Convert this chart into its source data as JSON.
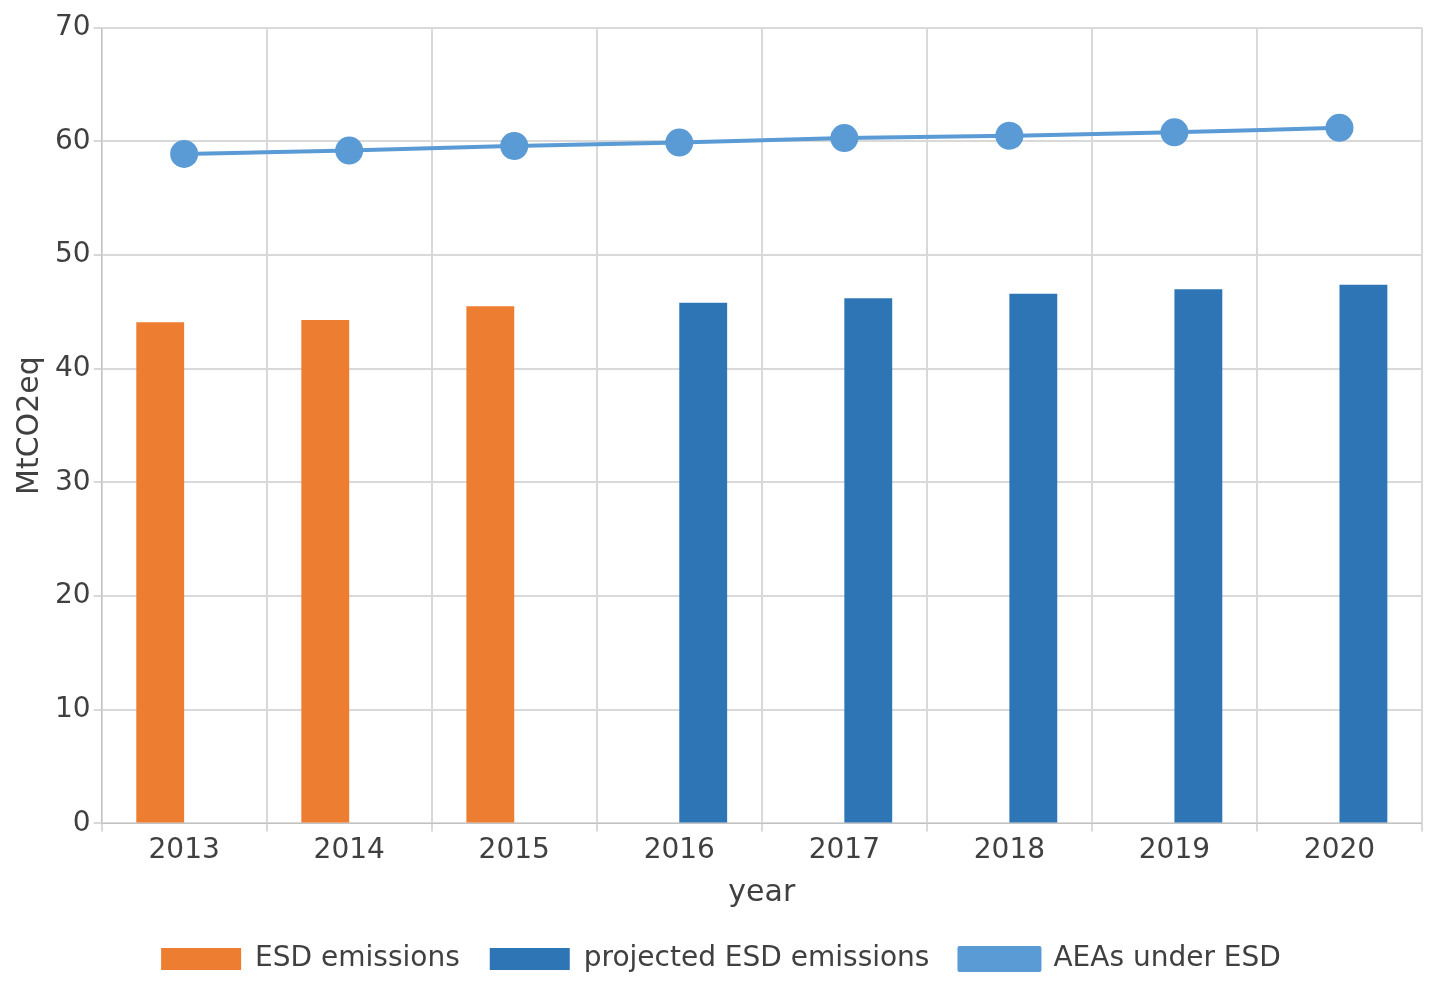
{
  "chart_data": {
    "type": "bar",
    "xlabel": "year",
    "ylabel": "MtCO2eq",
    "categories": [
      "2013",
      "2014",
      "2015",
      "2016",
      "2017",
      "2018",
      "2019",
      "2020"
    ],
    "series": [
      {
        "name": "ESD emissions",
        "color": "#ed7d31",
        "values": [
          44.1,
          44.3,
          45.5,
          null,
          null,
          null,
          null,
          null
        ]
      },
      {
        "name": "projected ESD emissions",
        "color": "#2e75b6",
        "values": [
          null,
          null,
          null,
          45.8,
          46.2,
          46.6,
          47.0,
          47.4
        ]
      },
      {
        "name": "AEAs under ESD",
        "type": "line",
        "color": "#5b9bd5",
        "marker": "circle",
        "values": [
          58.9,
          59.2,
          59.6,
          59.9,
          60.3,
          60.5,
          60.8,
          61.2
        ]
      }
    ],
    "ylim": [
      0,
      70
    ],
    "yticks": [
      0,
      10,
      20,
      30,
      40,
      50,
      60,
      70
    ],
    "grid": true,
    "legend": "bottom"
  }
}
